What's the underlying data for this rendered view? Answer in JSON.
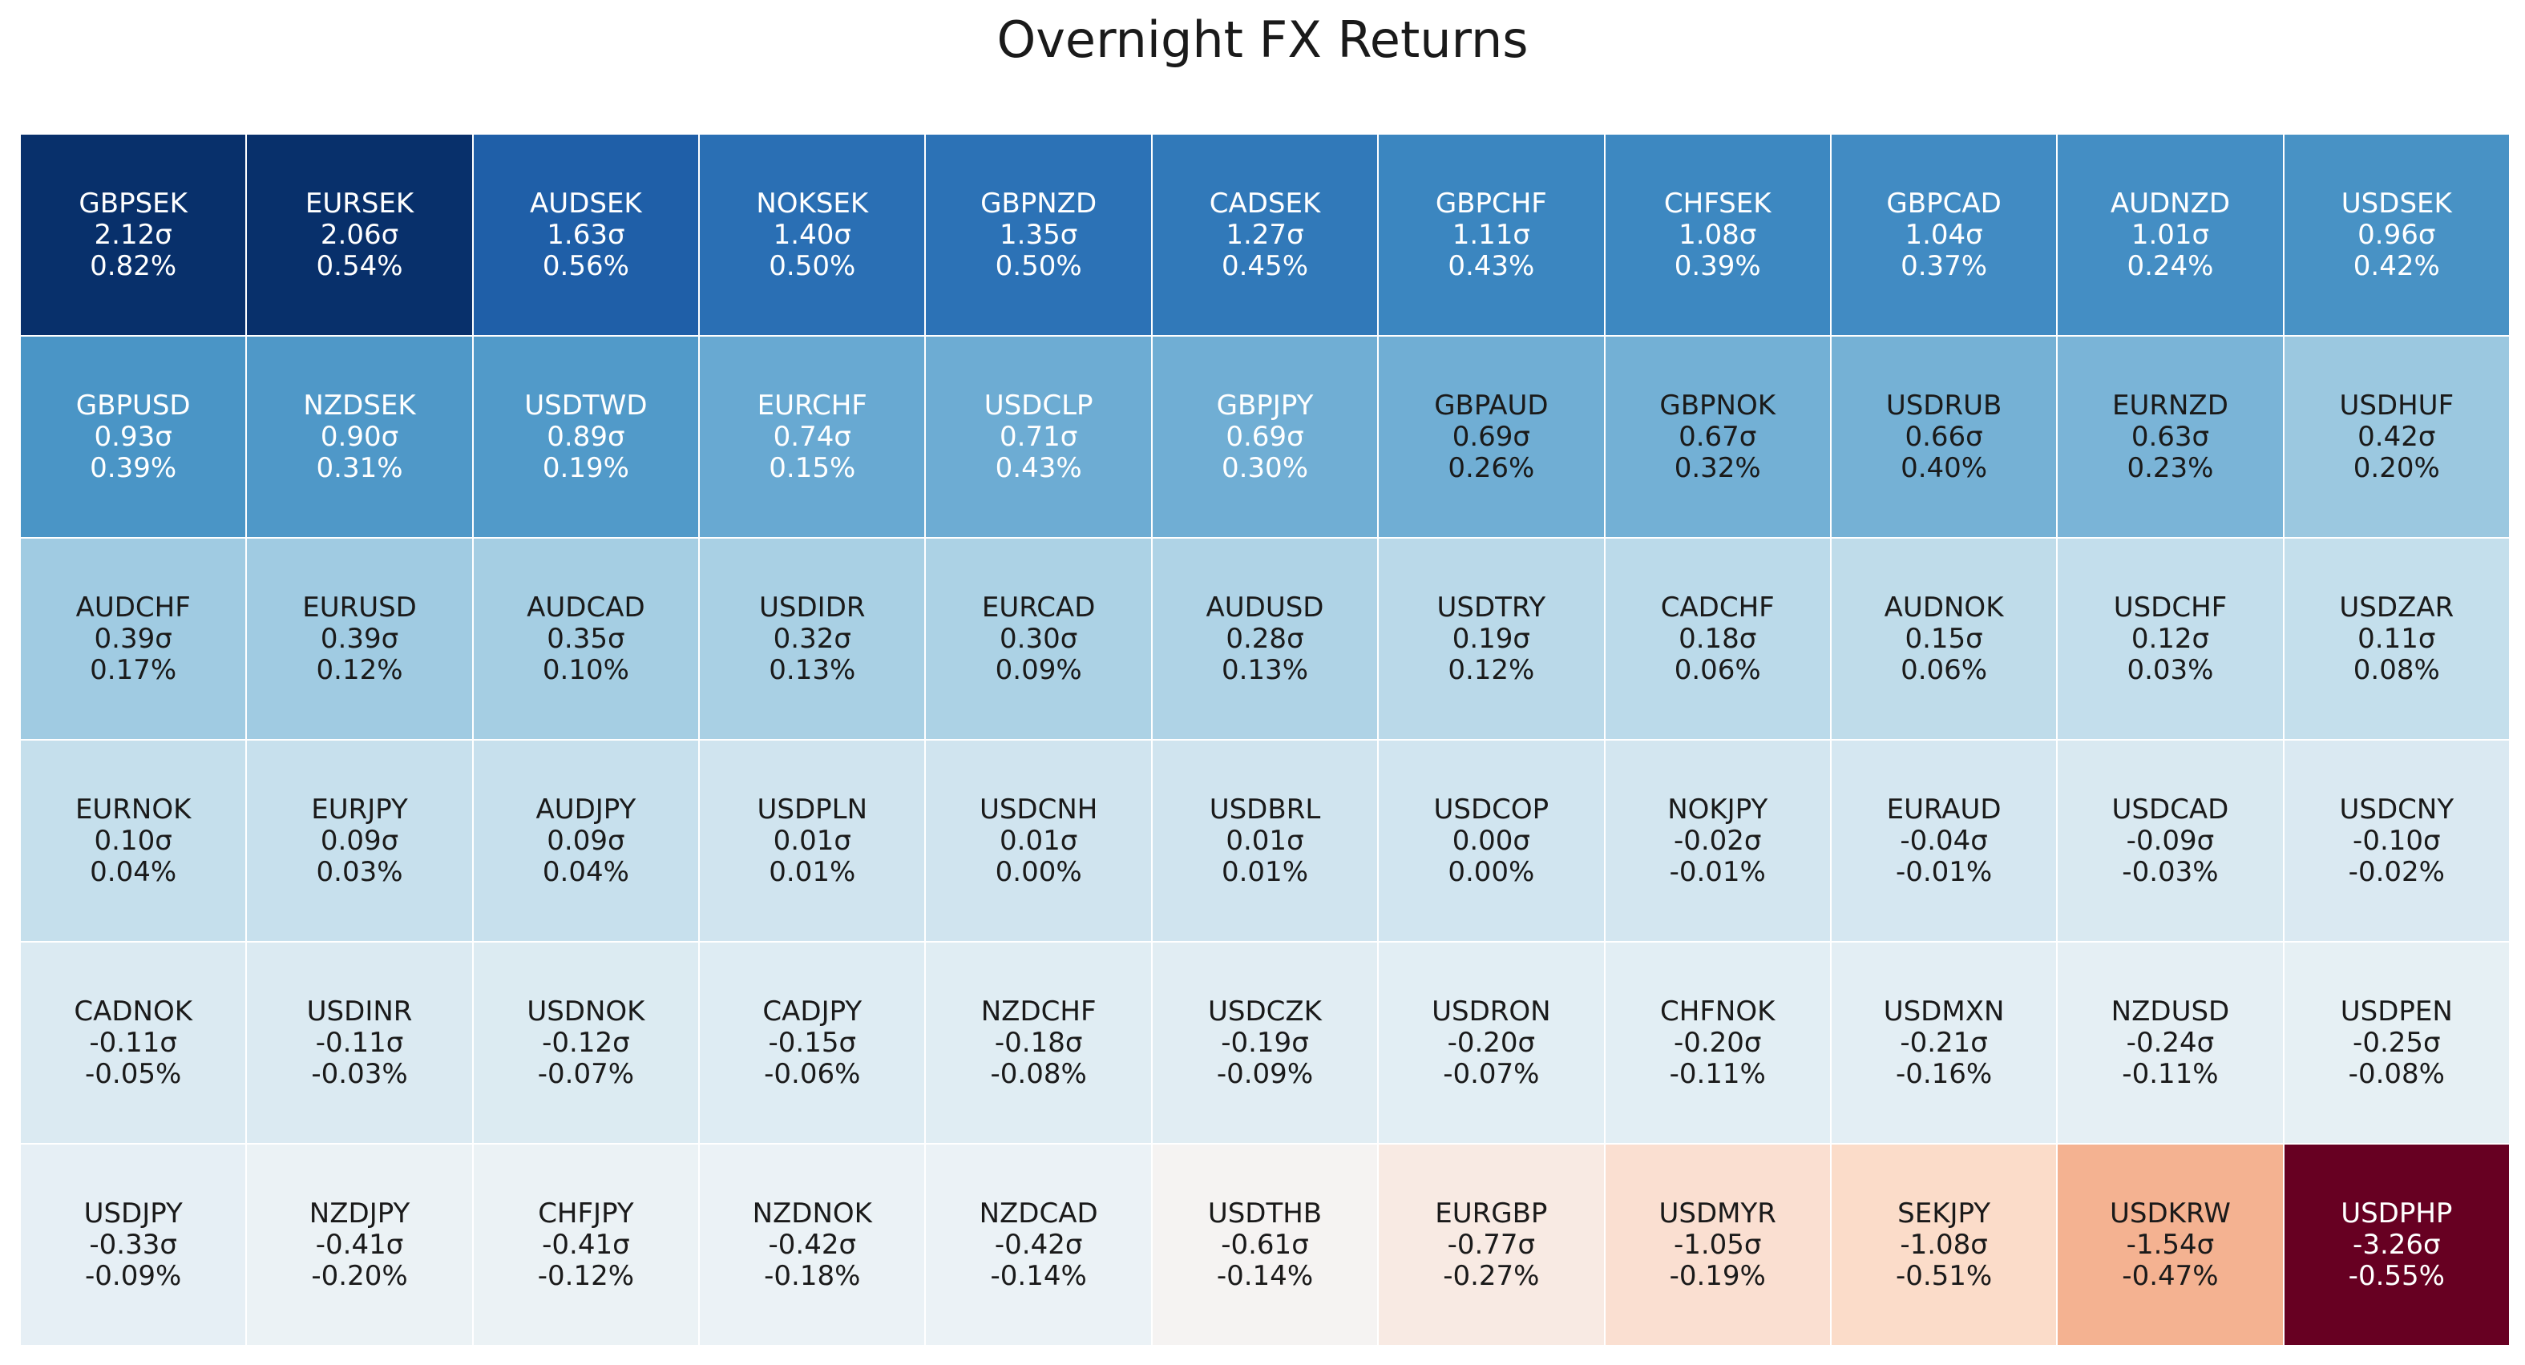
{
  "chart_data": {
    "type": "heatmap",
    "title": "Overnight FX Returns",
    "columns": 11,
    "rows": 6,
    "color_scale": "RdBu_r (blue = positive, red = negative)",
    "cells": [
      {
        "pair": "GBPSEK",
        "z": "2.12σ",
        "ret": "0.82%",
        "zval": 2.12,
        "color": "#08306b",
        "text_color": "#ffffff"
      },
      {
        "pair": "EURSEK",
        "z": "2.06σ",
        "ret": "0.54%",
        "zval": 2.06,
        "color": "#08306b",
        "text_color": "#ffffff"
      },
      {
        "pair": "AUDSEK",
        "z": "1.63σ",
        "ret": "0.56%",
        "zval": 1.63,
        "color": "#1f5fa8",
        "text_color": "#ffffff"
      },
      {
        "pair": "NOKSEK",
        "z": "1.40σ",
        "ret": "0.50%",
        "zval": 1.4,
        "color": "#2a6fb4",
        "text_color": "#ffffff"
      },
      {
        "pair": "GBPNZD",
        "z": "1.35σ",
        "ret": "0.50%",
        "zval": 1.35,
        "color": "#2c72b6",
        "text_color": "#ffffff"
      },
      {
        "pair": "CADSEK",
        "z": "1.27σ",
        "ret": "0.45%",
        "zval": 1.27,
        "color": "#3179b9",
        "text_color": "#ffffff"
      },
      {
        "pair": "GBPCHF",
        "z": "1.11σ",
        "ret": "0.43%",
        "zval": 1.11,
        "color": "#3b86c0",
        "text_color": "#ffffff"
      },
      {
        "pair": "CHFSEK",
        "z": "1.08σ",
        "ret": "0.39%",
        "zval": 1.08,
        "color": "#3d88c1",
        "text_color": "#ffffff"
      },
      {
        "pair": "GBPCAD",
        "z": "1.04σ",
        "ret": "0.37%",
        "zval": 1.04,
        "color": "#418bc3",
        "text_color": "#ffffff"
      },
      {
        "pair": "AUDNZD",
        "z": "1.01σ",
        "ret": "0.24%",
        "zval": 1.01,
        "color": "#448ec4",
        "text_color": "#ffffff"
      },
      {
        "pair": "USDSEK",
        "z": "0.96σ",
        "ret": "0.42%",
        "zval": 0.96,
        "color": "#4892c5",
        "text_color": "#ffffff"
      },
      {
        "pair": "GBPUSD",
        "z": "0.93σ",
        "ret": "0.39%",
        "zval": 0.93,
        "color": "#4a95c6",
        "text_color": "#ffffff"
      },
      {
        "pair": "NZDSEK",
        "z": "0.90σ",
        "ret": "0.31%",
        "zval": 0.9,
        "color": "#4f98c8",
        "text_color": "#ffffff"
      },
      {
        "pair": "USDTWD",
        "z": "0.89σ",
        "ret": "0.19%",
        "zval": 0.89,
        "color": "#519ac9",
        "text_color": "#ffffff"
      },
      {
        "pair": "EURCHF",
        "z": "0.74σ",
        "ret": "0.15%",
        "zval": 0.74,
        "color": "#68a9d2",
        "text_color": "#ffffff"
      },
      {
        "pair": "USDCLP",
        "z": "0.71σ",
        "ret": "0.43%",
        "zval": 0.71,
        "color": "#6dacd3",
        "text_color": "#ffffff"
      },
      {
        "pair": "GBPJPY",
        "z": "0.69σ",
        "ret": "0.30%",
        "zval": 0.69,
        "color": "#70aed4",
        "text_color": "#ffffff"
      },
      {
        "pair": "GBPAUD",
        "z": "0.69σ",
        "ret": "0.26%",
        "zval": 0.69,
        "color": "#70aed4",
        "text_color": "#1a1a1a"
      },
      {
        "pair": "GBPNOK",
        "z": "0.67σ",
        "ret": "0.32%",
        "zval": 0.67,
        "color": "#73b0d5",
        "text_color": "#1a1a1a"
      },
      {
        "pair": "USDRUB",
        "z": "0.66σ",
        "ret": "0.40%",
        "zval": 0.66,
        "color": "#75b1d5",
        "text_color": "#1a1a1a"
      },
      {
        "pair": "EURNZD",
        "z": "0.63σ",
        "ret": "0.23%",
        "zval": 0.63,
        "color": "#7ab4d7",
        "text_color": "#1a1a1a"
      },
      {
        "pair": "USDHUF",
        "z": "0.42σ",
        "ret": "0.20%",
        "zval": 0.42,
        "color": "#9bc8e0",
        "text_color": "#1a1a1a"
      },
      {
        "pair": "AUDCHF",
        "z": "0.39σ",
        "ret": "0.17%",
        "zval": 0.39,
        "color": "#a0cbe2",
        "text_color": "#1a1a1a"
      },
      {
        "pair": "EURUSD",
        "z": "0.39σ",
        "ret": "0.12%",
        "zval": 0.39,
        "color": "#a0cbe2",
        "text_color": "#1a1a1a"
      },
      {
        "pair": "AUDCAD",
        "z": "0.35σ",
        "ret": "0.10%",
        "zval": 0.35,
        "color": "#a5cee3",
        "text_color": "#1a1a1a"
      },
      {
        "pair": "USDIDR",
        "z": "0.32σ",
        "ret": "0.13%",
        "zval": 0.32,
        "color": "#a9d0e4",
        "text_color": "#1a1a1a"
      },
      {
        "pair": "EURCAD",
        "z": "0.30σ",
        "ret": "0.09%",
        "zval": 0.3,
        "color": "#acd2e5",
        "text_color": "#1a1a1a"
      },
      {
        "pair": "AUDUSD",
        "z": "0.28σ",
        "ret": "0.13%",
        "zval": 0.28,
        "color": "#afd3e6",
        "text_color": "#1a1a1a"
      },
      {
        "pair": "USDTRY",
        "z": "0.19σ",
        "ret": "0.12%",
        "zval": 0.19,
        "color": "#bad9e9",
        "text_color": "#1a1a1a"
      },
      {
        "pair": "CADCHF",
        "z": "0.18σ",
        "ret": "0.06%",
        "zval": 0.18,
        "color": "#bbdaea",
        "text_color": "#1a1a1a"
      },
      {
        "pair": "AUDNOK",
        "z": "0.15σ",
        "ret": "0.06%",
        "zval": 0.15,
        "color": "#bfdcea",
        "text_color": "#1a1a1a"
      },
      {
        "pair": "USDCHF",
        "z": "0.12σ",
        "ret": "0.03%",
        "zval": 0.12,
        "color": "#c3deec",
        "text_color": "#1a1a1a"
      },
      {
        "pair": "USDZAR",
        "z": "0.11σ",
        "ret": "0.08%",
        "zval": 0.11,
        "color": "#c4dfec",
        "text_color": "#1a1a1a"
      },
      {
        "pair": "EURNOK",
        "z": "0.10σ",
        "ret": "0.04%",
        "zval": 0.1,
        "color": "#c5dfec",
        "text_color": "#1a1a1a"
      },
      {
        "pair": "EURJPY",
        "z": "0.09σ",
        "ret": "0.03%",
        "zval": 0.09,
        "color": "#c7e0ed",
        "text_color": "#1a1a1a"
      },
      {
        "pair": "AUDJPY",
        "z": "0.09σ",
        "ret": "0.04%",
        "zval": 0.09,
        "color": "#c7e0ed",
        "text_color": "#1a1a1a"
      },
      {
        "pair": "USDPLN",
        "z": "0.01σ",
        "ret": "0.01%",
        "zval": 0.01,
        "color": "#d0e4ef",
        "text_color": "#1a1a1a"
      },
      {
        "pair": "USDCNH",
        "z": "0.01σ",
        "ret": "0.00%",
        "zval": 0.01,
        "color": "#d0e4ef",
        "text_color": "#1a1a1a"
      },
      {
        "pair": "USDBRL",
        "z": "0.01σ",
        "ret": "0.01%",
        "zval": 0.01,
        "color": "#d0e4ef",
        "text_color": "#1a1a1a"
      },
      {
        "pair": "USDCOP",
        "z": "0.00σ",
        "ret": "0.00%",
        "zval": 0.0,
        "color": "#d1e5f0",
        "text_color": "#1a1a1a"
      },
      {
        "pair": "NOKJPY",
        "z": "-0.02σ",
        "ret": "-0.01%",
        "zval": -0.02,
        "color": "#d3e6f0",
        "text_color": "#1a1a1a"
      },
      {
        "pair": "EURAUD",
        "z": "-0.04σ",
        "ret": "-0.01%",
        "zval": -0.04,
        "color": "#d5e7f1",
        "text_color": "#1a1a1a"
      },
      {
        "pair": "USDCAD",
        "z": "-0.09σ",
        "ret": "-0.03%",
        "zval": -0.09,
        "color": "#d9e9f1",
        "text_color": "#1a1a1a"
      },
      {
        "pair": "USDCNY",
        "z": "-0.10σ",
        "ret": "-0.02%",
        "zval": -0.1,
        "color": "#dae9f2",
        "text_color": "#1a1a1a"
      },
      {
        "pair": "CADNOK",
        "z": "-0.11σ",
        "ret": "-0.05%",
        "zval": -0.11,
        "color": "#dbeaf2",
        "text_color": "#1a1a1a"
      },
      {
        "pair": "USDINR",
        "z": "-0.11σ",
        "ret": "-0.03%",
        "zval": -0.11,
        "color": "#dbeaf2",
        "text_color": "#1a1a1a"
      },
      {
        "pair": "USDNOK",
        "z": "-0.12σ",
        "ret": "-0.07%",
        "zval": -0.12,
        "color": "#dcebf2",
        "text_color": "#1a1a1a"
      },
      {
        "pair": "CADJPY",
        "z": "-0.15σ",
        "ret": "-0.06%",
        "zval": -0.15,
        "color": "#deecf3",
        "text_color": "#1a1a1a"
      },
      {
        "pair": "NZDCHF",
        "z": "-0.18σ",
        "ret": "-0.08%",
        "zval": -0.18,
        "color": "#e0edf3",
        "text_color": "#1a1a1a"
      },
      {
        "pair": "USDCZK",
        "z": "-0.19σ",
        "ret": "-0.09%",
        "zval": -0.19,
        "color": "#e1edf3",
        "text_color": "#1a1a1a"
      },
      {
        "pair": "USDRON",
        "z": "-0.20σ",
        "ret": "-0.07%",
        "zval": -0.2,
        "color": "#e2eef4",
        "text_color": "#1a1a1a"
      },
      {
        "pair": "CHFNOK",
        "z": "-0.20σ",
        "ret": "-0.11%",
        "zval": -0.2,
        "color": "#e2eef4",
        "text_color": "#1a1a1a"
      },
      {
        "pair": "USDMXN",
        "z": "-0.21σ",
        "ret": "-0.16%",
        "zval": -0.21,
        "color": "#e3eef4",
        "text_color": "#1a1a1a"
      },
      {
        "pair": "NZDUSD",
        "z": "-0.24σ",
        "ret": "-0.11%",
        "zval": -0.24,
        "color": "#e5eff4",
        "text_color": "#1a1a1a"
      },
      {
        "pair": "USDPEN",
        "z": "-0.25σ",
        "ret": "-0.08%",
        "zval": -0.25,
        "color": "#e6f0f4",
        "text_color": "#1a1a1a"
      },
      {
        "pair": "USDJPY",
        "z": "-0.33σ",
        "ret": "-0.09%",
        "zval": -0.33,
        "color": "#e6eff5",
        "text_color": "#1a1a1a"
      },
      {
        "pair": "NZDJPY",
        "z": "-0.41σ",
        "ret": "-0.20%",
        "zval": -0.41,
        "color": "#ebf2f5",
        "text_color": "#1a1a1a"
      },
      {
        "pair": "CHFJPY",
        "z": "-0.41σ",
        "ret": "-0.12%",
        "zval": -0.41,
        "color": "#ebf2f5",
        "text_color": "#1a1a1a"
      },
      {
        "pair": "NZDNOK",
        "z": "-0.42σ",
        "ret": "-0.18%",
        "zval": -0.42,
        "color": "#ebf2f6",
        "text_color": "#1a1a1a"
      },
      {
        "pair": "NZDCAD",
        "z": "-0.42σ",
        "ret": "-0.14%",
        "zval": -0.42,
        "color": "#ebf2f6",
        "text_color": "#1a1a1a"
      },
      {
        "pair": "USDTHB",
        "z": "-0.61σ",
        "ret": "-0.14%",
        "zval": -0.61,
        "color": "#f5f3f2",
        "text_color": "#1a1a1a"
      },
      {
        "pair": "EURGBP",
        "z": "-0.77σ",
        "ret": "-0.27%",
        "zval": -0.77,
        "color": "#f8eae3",
        "text_color": "#1a1a1a"
      },
      {
        "pair": "USDMYR",
        "z": "-1.05σ",
        "ret": "-0.19%",
        "zval": -1.05,
        "color": "#fadfd1",
        "text_color": "#1a1a1a"
      },
      {
        "pair": "SEKJPY",
        "z": "-1.08σ",
        "ret": "-0.51%",
        "zval": -1.08,
        "color": "#fbdcc9",
        "text_color": "#1a1a1a"
      },
      {
        "pair": "USDKRW",
        "z": "-1.54σ",
        "ret": "-0.47%",
        "zval": -1.54,
        "color": "#f4b291",
        "text_color": "#1a1a1a"
      },
      {
        "pair": "USDPHP",
        "z": "-3.26σ",
        "ret": "-0.55%",
        "zval": -3.26,
        "color": "#670022",
        "text_color": "#ffffff"
      }
    ]
  }
}
